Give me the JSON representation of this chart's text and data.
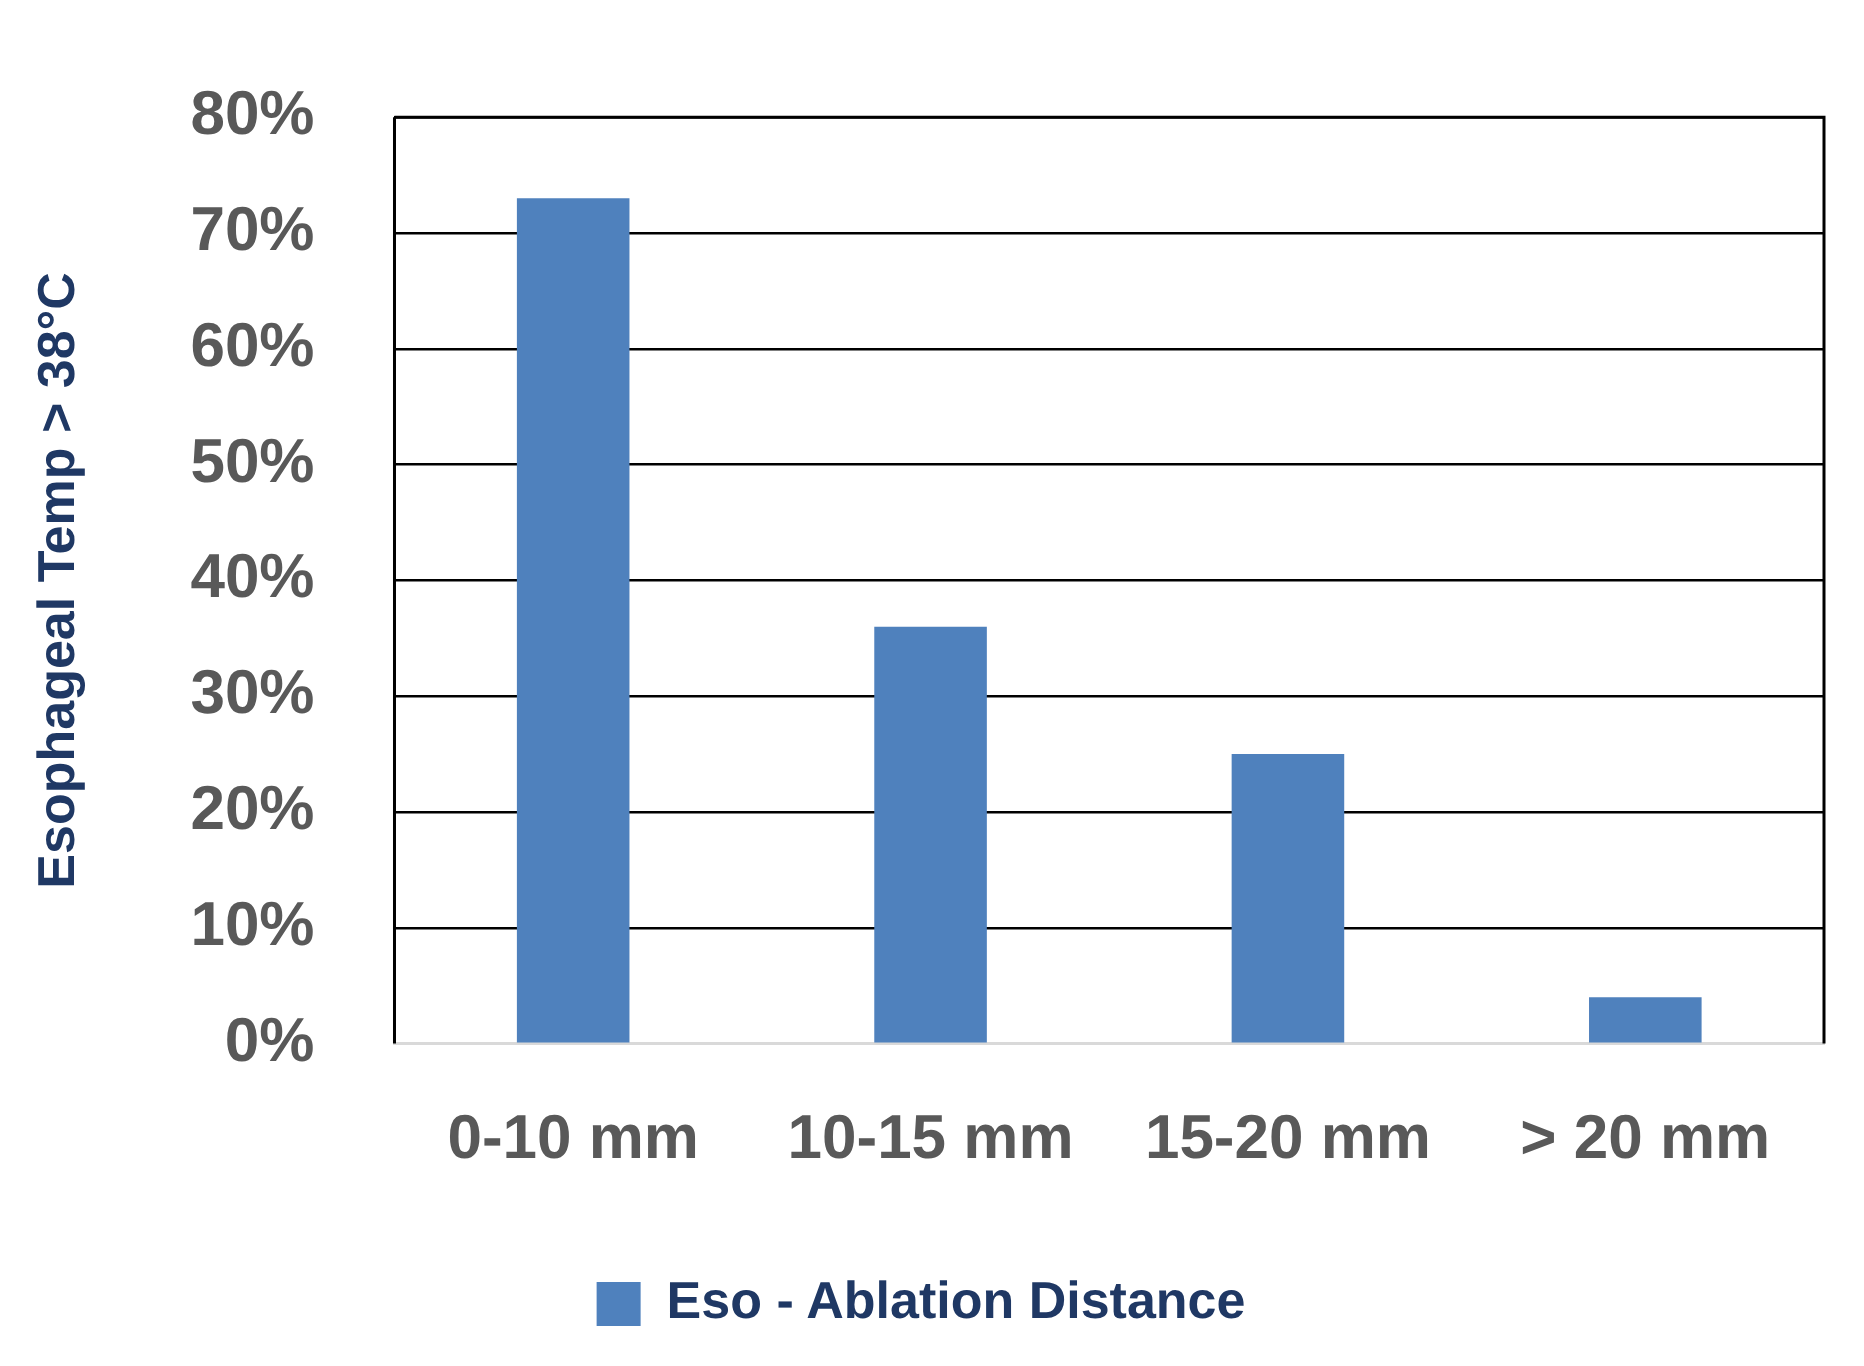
{
  "chart_data": {
    "type": "bar",
    "ylabel": "Esophageal Temp > 38°C",
    "categories": [
      "0-10 mm",
      "10-15 mm",
      "15-20 mm",
      "> 20 mm"
    ],
    "series": [
      {
        "name": "Eso - Ablation Distance",
        "color": "#4f81bd",
        "values": [
          73,
          36,
          25,
          4
        ]
      }
    ],
    "ylim": [
      0,
      80
    ],
    "yticks": [
      {
        "value": 0,
        "label": "0%"
      },
      {
        "value": 10,
        "label": "10%"
      },
      {
        "value": 20,
        "label": "20%"
      },
      {
        "value": 30,
        "label": "30%"
      },
      {
        "value": 40,
        "label": "40%"
      },
      {
        "value": 50,
        "label": "50%"
      },
      {
        "value": 60,
        "label": "60%"
      },
      {
        "value": 70,
        "label": "70%"
      },
      {
        "value": 80,
        "label": "80%"
      }
    ],
    "grid": "y",
    "legend": "bottom"
  }
}
